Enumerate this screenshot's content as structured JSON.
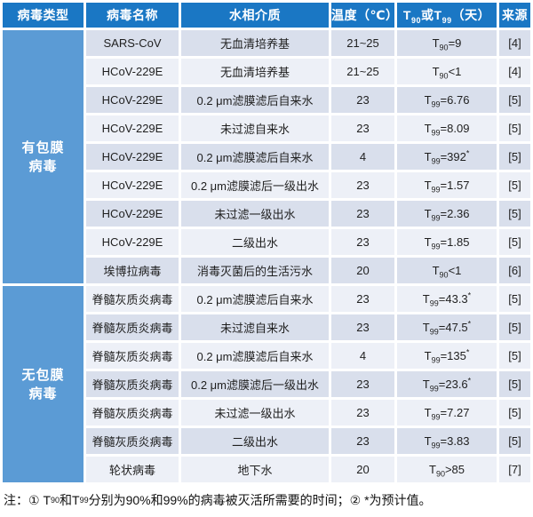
{
  "colors": {
    "header_bg": "#1a77c4",
    "group_bg": "#5b9bd5",
    "row_dark": "#d9dfec",
    "row_light": "#edf0f7",
    "grid_gap": "#ffffff"
  },
  "table": {
    "columns": {
      "c1": "病毒类型",
      "c2": "病毒名称",
      "c3": "水相介质",
      "c4": "温度（℃）",
      "c5": {
        "p1": "T",
        "s1": "90",
        "p2": "或T",
        "s2": "99",
        "p3": "（天）"
      },
      "c6": "来源"
    },
    "groups": [
      {
        "label": "有包膜\n病毒",
        "rowspan": 9
      },
      {
        "label": "无包膜\n病毒",
        "rowspan": 7
      }
    ],
    "rows": [
      {
        "virus": "SARS-CoV",
        "medium": "无血清培养基",
        "temp": "21~25",
        "t_pre": "T",
        "t_sub": "90",
        "t_rest": "=9",
        "t_star": "",
        "source": "[4]"
      },
      {
        "virus": "HCoV-229E",
        "medium": "无血清培养基",
        "temp": "21~25",
        "t_pre": "T",
        "t_sub": "90",
        "t_rest": "<1",
        "t_star": "",
        "source": "[4]"
      },
      {
        "virus": "HCoV-229E",
        "medium": "0.2 μm滤膜滤后自来水",
        "temp": "23",
        "t_pre": "T",
        "t_sub": "99",
        "t_rest": "=6.76",
        "t_star": "",
        "source": "[5]"
      },
      {
        "virus": "HCoV-229E",
        "medium": "未过滤自来水",
        "temp": "23",
        "t_pre": "T",
        "t_sub": "99",
        "t_rest": "=8.09",
        "t_star": "",
        "source": "[5]"
      },
      {
        "virus": "HCoV-229E",
        "medium": "0.2 μm滤膜滤后自来水",
        "temp": "4",
        "t_pre": "T",
        "t_sub": "99",
        "t_rest": "=392",
        "t_star": "*",
        "source": "[5]"
      },
      {
        "virus": "HCoV-229E",
        "medium": "0.2 μm滤膜滤后一级出水",
        "temp": "23",
        "t_pre": "T",
        "t_sub": "99",
        "t_rest": "=1.57",
        "t_star": "",
        "source": "[5]"
      },
      {
        "virus": "HCoV-229E",
        "medium": "未过滤一级出水",
        "temp": "23",
        "t_pre": "T",
        "t_sub": "99",
        "t_rest": "=2.36",
        "t_star": "",
        "source": "[5]"
      },
      {
        "virus": "HCoV-229E",
        "medium": "二级出水",
        "temp": "23",
        "t_pre": "T",
        "t_sub": "99",
        "t_rest": "=1.85",
        "t_star": "",
        "source": "[5]"
      },
      {
        "virus": "埃博拉病毒",
        "medium": "消毒灭菌后的生活污水",
        "temp": "20",
        "t_pre": "T",
        "t_sub": "90",
        "t_rest": "<1",
        "t_star": "",
        "source": "[6]"
      },
      {
        "virus": "脊髓灰质炎病毒",
        "medium": "0.2 μm滤膜滤后自来水",
        "temp": "23",
        "t_pre": "T",
        "t_sub": "99",
        "t_rest": "=43.3",
        "t_star": "*",
        "source": "[5]"
      },
      {
        "virus": "脊髓灰质炎病毒",
        "medium": "未过滤自来水",
        "temp": "23",
        "t_pre": "T",
        "t_sub": "99",
        "t_rest": "=47.5",
        "t_star": "*",
        "source": "[5]"
      },
      {
        "virus": "脊髓灰质炎病毒",
        "medium": "0.2 μm滤膜滤后自来水",
        "temp": "4",
        "t_pre": "T",
        "t_sub": "99",
        "t_rest": "=135",
        "t_star": "*",
        "source": "[5]"
      },
      {
        "virus": "脊髓灰质炎病毒",
        "medium": "0.2 μm滤膜滤后一级出水",
        "temp": "23",
        "t_pre": "T",
        "t_sub": "99",
        "t_rest": "=23.6",
        "t_star": "*",
        "source": "[5]"
      },
      {
        "virus": "脊髓灰质炎病毒",
        "medium": "未过滤一级出水",
        "temp": "23",
        "t_pre": "T",
        "t_sub": "99",
        "t_rest": "=7.27",
        "t_star": "",
        "source": "[5]"
      },
      {
        "virus": "脊髓灰质炎病毒",
        "medium": "二级出水",
        "temp": "23",
        "t_pre": "T",
        "t_sub": "99",
        "t_rest": "=3.83",
        "t_star": "",
        "source": "[5]"
      },
      {
        "virus": "轮状病毒",
        "medium": "地下水",
        "temp": "20",
        "t_pre": "T",
        "t_sub": "90",
        "t_rest": ">85",
        "t_star": "",
        "source": "[7]"
      }
    ]
  },
  "note": {
    "p1": "注：① T",
    "s1": "90",
    "p2": "和T",
    "s2": "99",
    "p3": "分别为90%和99%的病毒被灭活所需要的时间；② *为预计值。"
  }
}
